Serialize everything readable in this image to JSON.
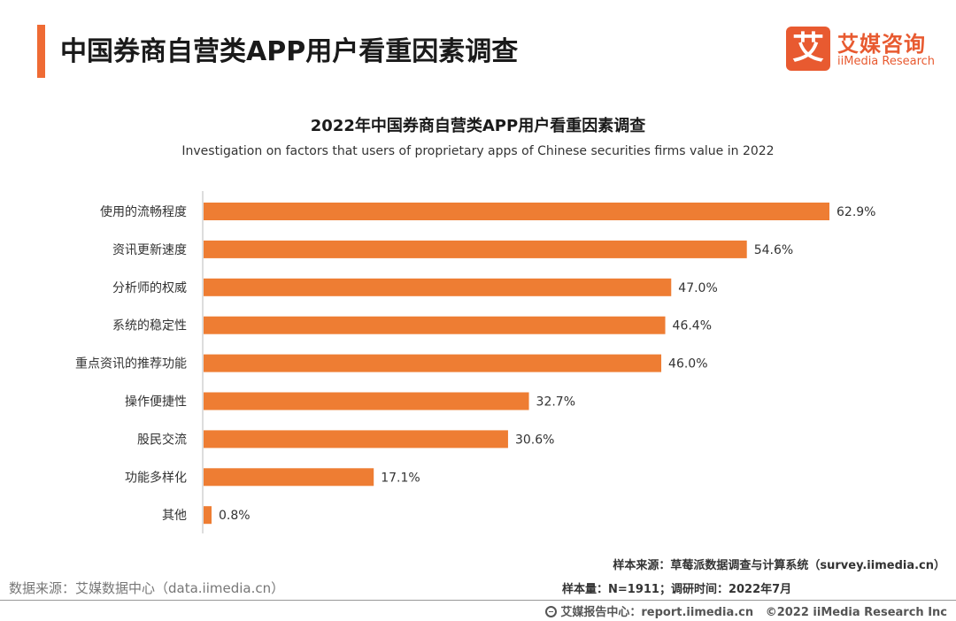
{
  "header": {
    "title": "中国券商自营类APP用户看重因素调查",
    "logo_mark": "艾",
    "logo_cn": "艾媒咨询",
    "logo_en": "iiMedia Research",
    "brand_color": "#E85A30"
  },
  "chart_data": {
    "type": "bar",
    "orientation": "horizontal",
    "title": "2022年中国券商自营类APP用户看重因素调查",
    "subtitle": "Investigation on factors that users of proprietary apps of Chinese securities firms value in 2022",
    "categories": [
      "使用的流畅程度",
      "资讯更新速度",
      "分析师的权威",
      "系统的稳定性",
      "重点资讯的推荐功能",
      "操作便捷性",
      "股民交流",
      "功能多样化",
      "其他"
    ],
    "values": [
      62.9,
      54.6,
      47.0,
      46.4,
      46.0,
      32.7,
      30.6,
      17.1,
      0.8
    ],
    "labels": [
      "62.9%",
      "54.6%",
      "47.0%",
      "46.4%",
      "46.0%",
      "32.7%",
      "30.6%",
      "17.1%",
      "0.8%"
    ],
    "unit": "%",
    "xlim": [
      0,
      65
    ],
    "bar_color": "#EE7D33",
    "grid": false,
    "xlabel": "",
    "ylabel": ""
  },
  "footer": {
    "data_source": "数据来源：艾媒数据中心（data.iimedia.cn）",
    "sample_source": "样本来源：草莓派数据调查与计算系统（survey.iimedia.cn）",
    "sample_info": "样本量：N=1911；调研时间：2022年7月",
    "report_center": "艾媒报告中心：report.iimedia.cn",
    "copyright": "©2022  iiMedia Research  Inc"
  }
}
